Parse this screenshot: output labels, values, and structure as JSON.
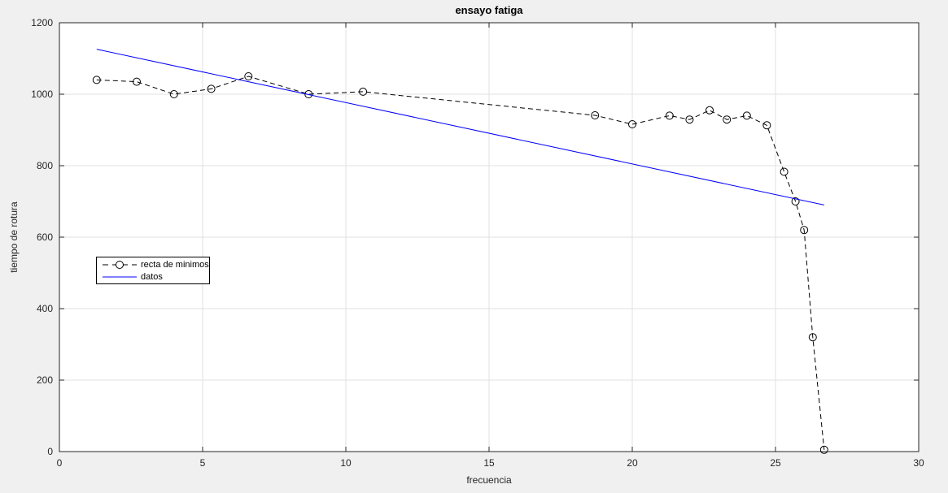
{
  "figure": {
    "background": "#f0f0f0"
  },
  "chart_data": {
    "type": "line",
    "title": "ensayo fatiga",
    "xlabel": "frecuencia",
    "ylabel": "tiempo de rotura",
    "xlim": [
      0,
      30
    ],
    "ylim": [
      0,
      1200
    ],
    "xticks": [
      0,
      5,
      10,
      15,
      20,
      25,
      30
    ],
    "yticks": [
      0,
      200,
      400,
      600,
      800,
      1000,
      1200
    ],
    "grid": true,
    "legend_position": "middle-left",
    "colors": {
      "axis": "#262626",
      "grid": "#e0e0e0",
      "plot_background": "#ffffff",
      "tick_text": "#262626"
    },
    "series": [
      {
        "name": "recta de minimos",
        "color": "#000000",
        "line_style": "dashed",
        "marker": "circle",
        "x": [
          1.3,
          2.7,
          4.0,
          5.3,
          6.6,
          8.7,
          10.6,
          18.7,
          20.0,
          21.3,
          22.0,
          22.7,
          23.3,
          24.0,
          24.7,
          25.3,
          25.7,
          26.0,
          26.3,
          26.7
        ],
        "y": [
          1040,
          1035,
          1000,
          1015,
          1050,
          1000,
          1007,
          941,
          916,
          940,
          929,
          955,
          929,
          940,
          913,
          783,
          700,
          620,
          320,
          5
        ]
      },
      {
        "name": "datos",
        "color": "#0000ff",
        "line_style": "solid",
        "marker": "none",
        "x": [
          1.3,
          26.7
        ],
        "y": [
          1126,
          690
        ]
      }
    ]
  }
}
